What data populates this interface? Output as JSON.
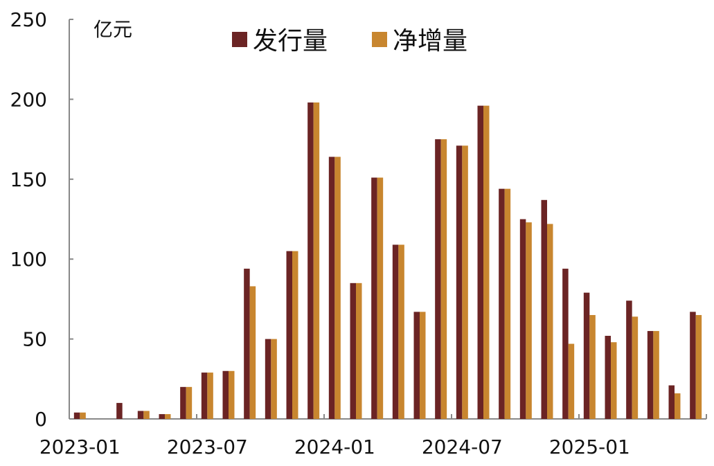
{
  "chart_data": {
    "type": "bar",
    "title": "",
    "xlabel": "",
    "ylabel": "",
    "unit_label": "亿元",
    "ylim": [
      0,
      250
    ],
    "yticks": [
      "0",
      "50",
      "100",
      "150",
      "200",
      "250"
    ],
    "ytick_values": [
      0,
      50,
      100,
      150,
      200,
      250
    ],
    "legend_position": "top-center",
    "x_tick_labels": [
      "2023-01",
      "2023-07",
      "2024-01",
      "2024-07",
      "2025-01"
    ],
    "categories": [
      "2023-01",
      "2023-02",
      "2023-03",
      "2023-04",
      "2023-05",
      "2023-06",
      "2023-07",
      "2023-08",
      "2023-09",
      "2023-10",
      "2023-11",
      "2023-12",
      "2024-01",
      "2024-02",
      "2024-03",
      "2024-04",
      "2024-05",
      "2024-06",
      "2024-07",
      "2024-08",
      "2024-09",
      "2024-10",
      "2024-11",
      "2024-12",
      "2025-01",
      "2025-02",
      "2025-03",
      "2025-04",
      "2025-05",
      "2025-06"
    ],
    "series": [
      {
        "name": "发行量",
        "color": "#6b2424",
        "values": [
          4,
          0,
          10,
          5,
          3,
          20,
          29,
          30,
          94,
          50,
          105,
          198,
          164,
          85,
          151,
          109,
          67,
          175,
          171,
          196,
          144,
          125,
          137,
          94,
          79,
          52,
          74,
          55,
          21,
          67
        ]
      },
      {
        "name": "净增量",
        "color": "#c8862f",
        "values": [
          4,
          0,
          0,
          5,
          3,
          20,
          29,
          30,
          83,
          50,
          105,
          198,
          164,
          85,
          151,
          109,
          67,
          175,
          171,
          196,
          144,
          123,
          122,
          47,
          65,
          48,
          64,
          55,
          16,
          65
        ]
      }
    ]
  }
}
